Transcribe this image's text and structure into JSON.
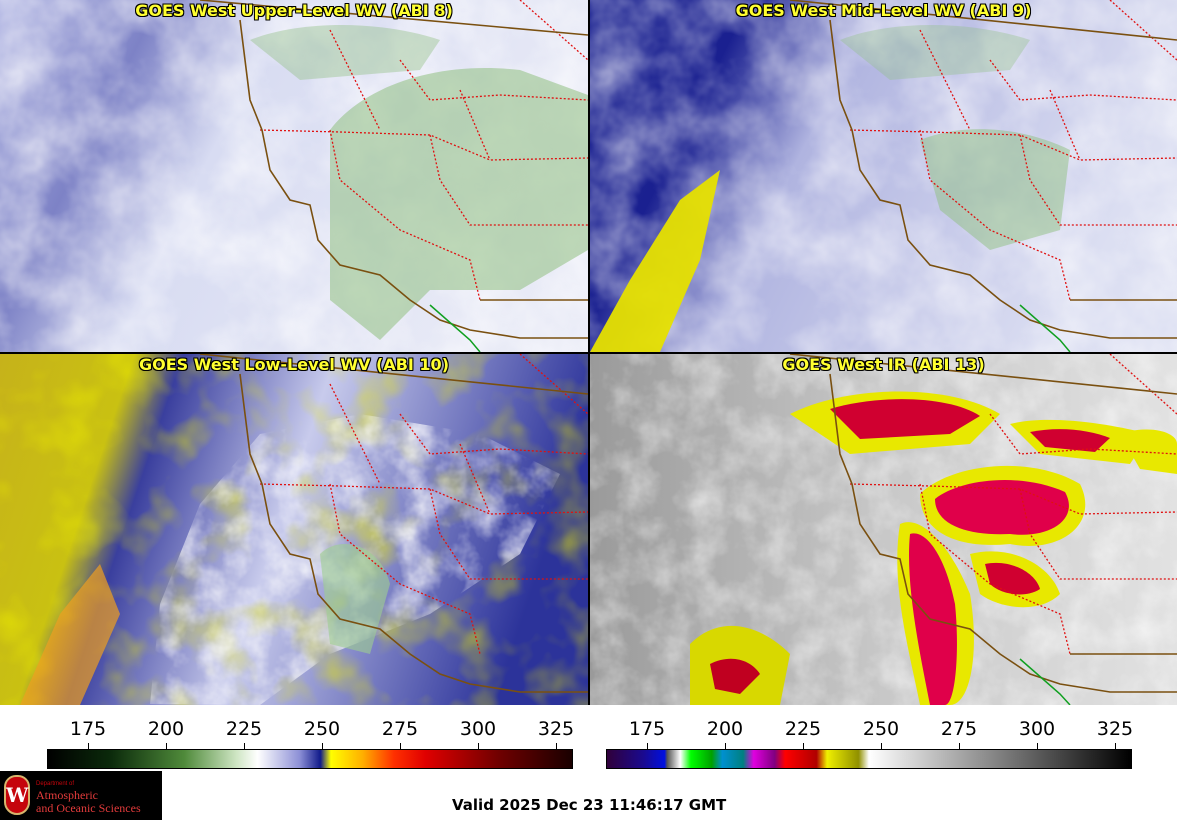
{
  "panels": [
    {
      "title": "GOES West Upper-Level WV (ABI 8)"
    },
    {
      "title": "GOES West Mid-Level WV (ABI 9)"
    },
    {
      "title": "GOES West Low-Level WV (ABI 10)"
    },
    {
      "title": "GOES West IR (ABI 13)"
    }
  ],
  "colorbars": [
    {
      "ticks": [
        "175",
        "200",
        "225",
        "250",
        "275",
        "300",
        "325"
      ]
    },
    {
      "ticks": [
        "175",
        "200",
        "225",
        "250",
        "275",
        "300",
        "325"
      ]
    }
  ],
  "footer": {
    "valid_time": "Valid 2025 Dec 23 11:46:17 GMT",
    "logo_small": "Department of",
    "logo_line1": "Atmospheric",
    "logo_line2": "and Oceanic Sciences",
    "logo_letter": "W"
  }
}
